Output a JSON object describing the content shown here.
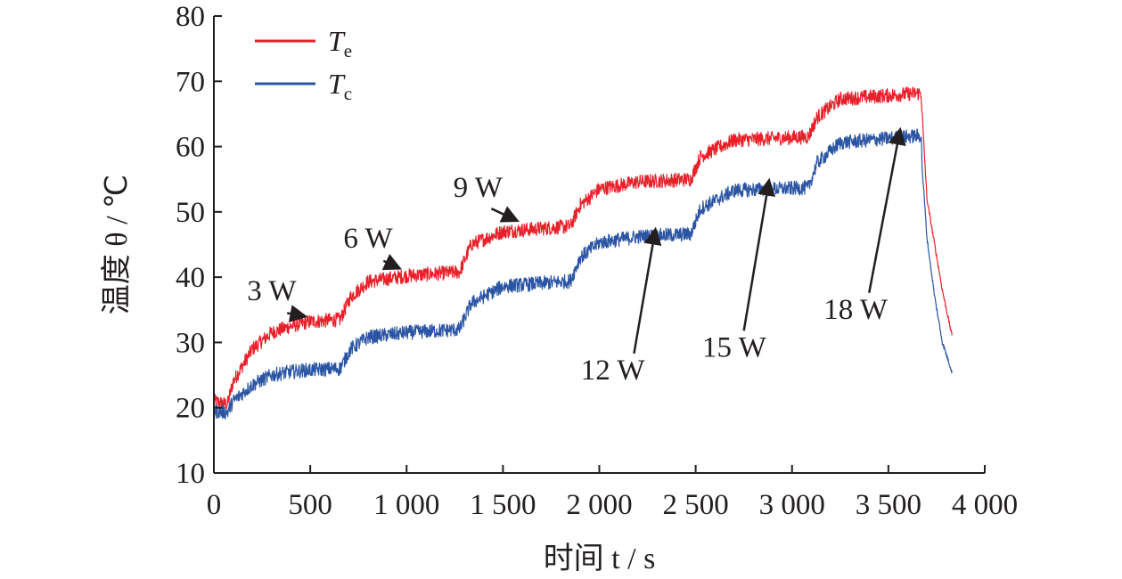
{
  "chart_data": {
    "type": "line",
    "xlabel": "时间 t / s",
    "ylabel": "温度 θ / ℃",
    "xlim": [
      0,
      4000
    ],
    "ylim": [
      10,
      80
    ],
    "x_ticks": [
      0,
      500,
      1000,
      1500,
      2000,
      2500,
      3000,
      3500,
      4000
    ],
    "x_tick_labels": [
      "0",
      "500",
      "1 000",
      "1 500",
      "2 000",
      "2 500",
      "3 000",
      "3 500",
      "4 000"
    ],
    "y_ticks": [
      10,
      20,
      30,
      40,
      50,
      60,
      70,
      80
    ],
    "y_tick_labels": [
      "10",
      "20",
      "30",
      "40",
      "50",
      "60",
      "70",
      "80"
    ],
    "grid": false,
    "legend_position": "top-left",
    "series": [
      {
        "name": "Te",
        "color": "#e8202a",
        "points": [
          [
            0,
            21
          ],
          [
            70,
            20.5
          ],
          [
            100,
            24
          ],
          [
            200,
            29
          ],
          [
            300,
            31.5
          ],
          [
            400,
            32.5
          ],
          [
            500,
            33.2
          ],
          [
            655,
            33.5
          ],
          [
            710,
            37
          ],
          [
            800,
            39.3
          ],
          [
            1000,
            40.2
          ],
          [
            1275,
            40.8
          ],
          [
            1335,
            45
          ],
          [
            1500,
            47
          ],
          [
            1850,
            47.8
          ],
          [
            1900,
            51
          ],
          [
            2000,
            53.5
          ],
          [
            2200,
            54.6
          ],
          [
            2475,
            55
          ],
          [
            2525,
            58.5
          ],
          [
            2700,
            61
          ],
          [
            3085,
            61.5
          ],
          [
            3130,
            64.5
          ],
          [
            3250,
            67.3
          ],
          [
            3670,
            68.2
          ],
          [
            3675,
            65
          ],
          [
            3700,
            52
          ],
          [
            3740,
            45
          ],
          [
            3780,
            38
          ],
          [
            3830,
            31
          ]
        ]
      },
      {
        "name": "Tc",
        "color": "#2b55a4",
        "points": [
          [
            0,
            19.5
          ],
          [
            70,
            19.3
          ],
          [
            100,
            21
          ],
          [
            200,
            23.5
          ],
          [
            300,
            25
          ],
          [
            400,
            25.5
          ],
          [
            500,
            25.8
          ],
          [
            655,
            26
          ],
          [
            710,
            29
          ],
          [
            800,
            30.8
          ],
          [
            1000,
            31.5
          ],
          [
            1275,
            32
          ],
          [
            1335,
            36
          ],
          [
            1500,
            38.6
          ],
          [
            1850,
            39.4
          ],
          [
            1900,
            43
          ],
          [
            2000,
            45.3
          ],
          [
            2200,
            46.2
          ],
          [
            2475,
            46.6
          ],
          [
            2525,
            50.5
          ],
          [
            2700,
            53.3
          ],
          [
            3085,
            53.7
          ],
          [
            3130,
            57.5
          ],
          [
            3250,
            60.6
          ],
          [
            3670,
            61.7
          ],
          [
            3675,
            57
          ],
          [
            3700,
            46
          ],
          [
            3740,
            37
          ],
          [
            3780,
            30
          ],
          [
            3830,
            25.5
          ]
        ]
      }
    ],
    "legend": [
      {
        "label": "T",
        "sub": "e",
        "color": "#e8202a"
      },
      {
        "label": "T",
        "sub": "c",
        "color": "#2b55a4"
      }
    ],
    "annotations": [
      {
        "text": "3 W",
        "label_at": [
          300,
          36.5
        ],
        "arrow_from": [
          380,
          34.5
        ],
        "arrow_to": [
          470,
          34
        ]
      },
      {
        "text": "6 W",
        "label_at": [
          800,
          44.5
        ],
        "arrow_from": [
          880,
          42.5
        ],
        "arrow_to": [
          960,
          41.4
        ]
      },
      {
        "text": "9 W",
        "label_at": [
          1370,
          52.3
        ],
        "arrow_from": [
          1440,
          50.5
        ],
        "arrow_to": [
          1570,
          48.7
        ]
      },
      {
        "text": "12 W",
        "label_at": [
          2070,
          24.3
        ],
        "arrow_from": [
          2180,
          28.3
        ],
        "arrow_to": [
          2290,
          47.2
        ]
      },
      {
        "text": "15 W",
        "label_at": [
          2700,
          27.8
        ],
        "arrow_from": [
          2750,
          31.8
        ],
        "arrow_to": [
          2880,
          54.7
        ]
      },
      {
        "text": "18 W",
        "label_at": [
          3330,
          33.6
        ],
        "arrow_from": [
          3400,
          37.6
        ],
        "arrow_to": [
          3560,
          62.5
        ]
      }
    ]
  }
}
